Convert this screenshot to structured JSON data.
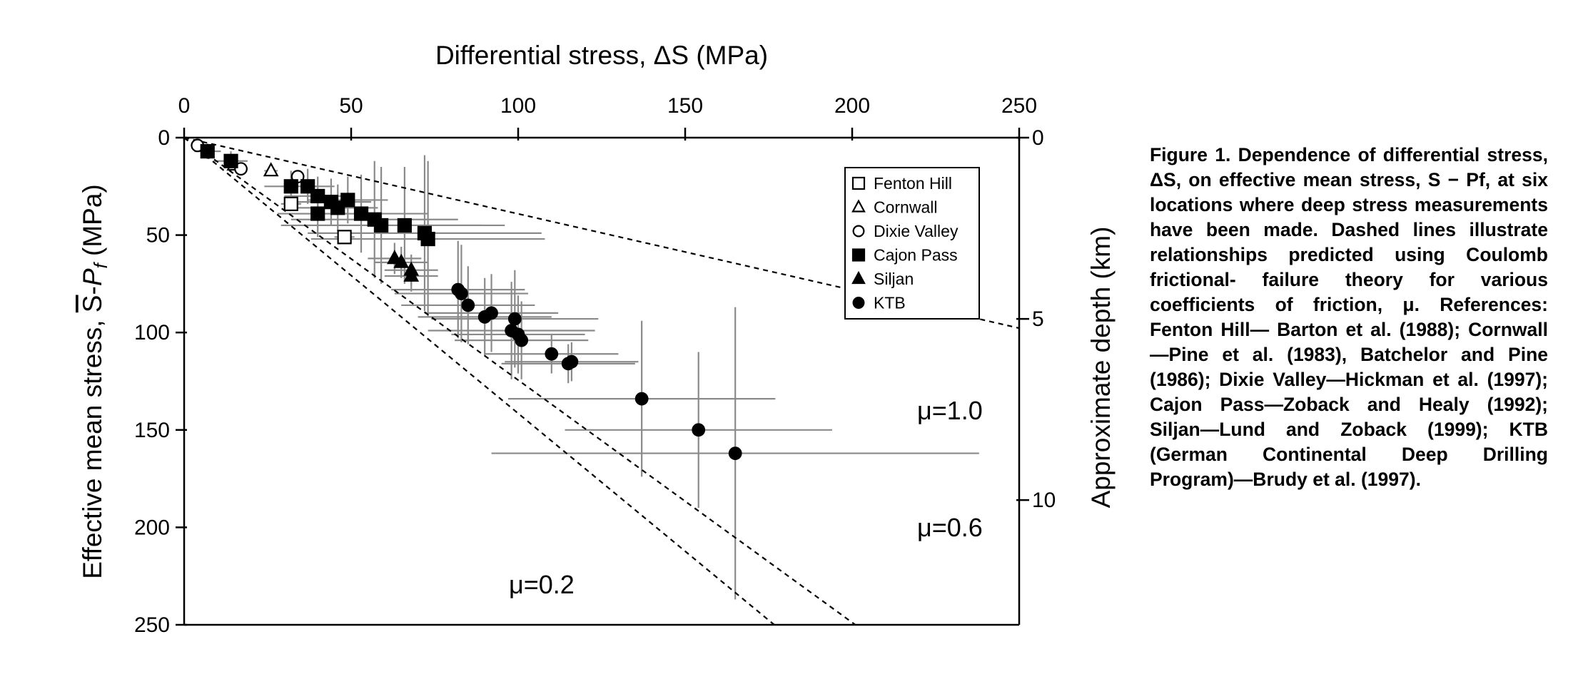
{
  "chart_data": {
    "type": "scatter",
    "title": "Differential stress, ΔS (MPa)",
    "xlabel": "Differential stress, ΔS (MPa)",
    "ylabel_prefix": "Effective mean stress, ",
    "ylabel_s": "S",
    "ylabel_dash": "-",
    "ylabel_p": "P",
    "ylabel_f": "f",
    "ylabel_suffix": " (MPa)",
    "y2label": "Approximate depth (km)",
    "xlim": [
      0,
      250
    ],
    "ylim": [
      0,
      250
    ],
    "y_inverted": true,
    "x_axis_position": "top",
    "x_ticks": [
      0,
      50,
      100,
      150,
      200,
      250
    ],
    "x_tick_labels": [
      "0",
      "50",
      "100",
      "150",
      "200",
      "250"
    ],
    "y_ticks": [
      0,
      50,
      100,
      150,
      200,
      250
    ],
    "y_tick_labels": [
      "0",
      "50",
      "100",
      "150",
      "200",
      "250"
    ],
    "depth_ticks": [
      {
        "label": "0",
        "stress": 0
      },
      {
        "label": "5",
        "stress": 93
      },
      {
        "label": "10",
        "stress": 186
      }
    ],
    "grid": false,
    "legend_position": "top-right",
    "friction_lines": [
      {
        "label": "μ=0.2",
        "slope": 0.391
      },
      {
        "label": "μ=0.6",
        "slope": 1.244
      },
      {
        "label": "μ=1.0",
        "slope": 1.415
      }
    ],
    "series": [
      {
        "name": "Fenton Hill",
        "marker": "square-open",
        "points": [
          [
            32,
            34,
            3,
            3
          ],
          [
            48,
            51,
            3,
            3
          ]
        ]
      },
      {
        "name": "Cornwall",
        "marker": "triangle-open",
        "points": [
          [
            15,
            14,
            2,
            2
          ],
          [
            26,
            17,
            2,
            2
          ]
        ]
      },
      {
        "name": "Dixie Valley",
        "marker": "circle-open",
        "points": [
          [
            4,
            4,
            2,
            2
          ],
          [
            17,
            16,
            2,
            2
          ],
          [
            34,
            20,
            2,
            2
          ]
        ]
      },
      {
        "name": "Cajon Pass",
        "marker": "square-filled",
        "points": [
          [
            7,
            7,
            4,
            4
          ],
          [
            14,
            12,
            5,
            5
          ],
          [
            32,
            25,
            8,
            8
          ],
          [
            37,
            25,
            8,
            9
          ],
          [
            40,
            30,
            10,
            10
          ],
          [
            44,
            33,
            12,
            12
          ],
          [
            46,
            36,
            12,
            12
          ],
          [
            49,
            32,
            12,
            12
          ],
          [
            40,
            39,
            12,
            12
          ],
          [
            53,
            39,
            20,
            20
          ],
          [
            57,
            42,
            25,
            30
          ],
          [
            59,
            45,
            30,
            30
          ],
          [
            66,
            45,
            30,
            30
          ],
          [
            72,
            49,
            35,
            40
          ],
          [
            73,
            52,
            35,
            40
          ]
        ]
      },
      {
        "name": "Siljan",
        "marker": "triangle-filled",
        "points": [
          [
            63,
            62,
            8,
            8
          ],
          [
            65,
            64,
            8,
            8
          ],
          [
            68,
            68,
            8,
            8
          ],
          [
            68,
            71,
            8,
            8
          ]
        ]
      },
      {
        "name": "KTB",
        "marker": "circle-filled",
        "points": [
          [
            82,
            78,
            20,
            25
          ],
          [
            83,
            80,
            20,
            25
          ],
          [
            85,
            86,
            20,
            20
          ],
          [
            90,
            92,
            20,
            20
          ],
          [
            92,
            90,
            20,
            20
          ],
          [
            98,
            99,
            25,
            25
          ],
          [
            99,
            93,
            25,
            25
          ],
          [
            100,
            101,
            20,
            20
          ],
          [
            101,
            104,
            20,
            20
          ],
          [
            110,
            111,
            20,
            10
          ],
          [
            115,
            116,
            20,
            10
          ],
          [
            116,
            115,
            20,
            10
          ],
          [
            137,
            134,
            40,
            40
          ],
          [
            154,
            150,
            40,
            40
          ],
          [
            165,
            162,
            73,
            75
          ]
        ]
      }
    ]
  },
  "caption": {
    "lines": [
      "Figure 1. Dependence of differential",
      "stress, ΔS, on effective mean stress,",
      "S − Pf, at six locations where deep",
      "stress measurements have been made.",
      "Dashed lines illustrate relationships",
      "predicted using Coulomb frictional-",
      "failure theory for various coefficients of",
      "friction, μ. References: Fenton Hill—",
      "Barton et al. (1988); Cornwall—Pine",
      "et al. (1983), Batchelor and Pine (1986);",
      "Dixie Valley—Hickman et al. (1997);",
      "Cajon Pass—Zoback and Healy (1992);",
      "Siljan—Lund and Zoback (1999); KTB",
      "(German Continental Deep Drilling",
      "Program)—Brudy et al. (1997)."
    ]
  }
}
